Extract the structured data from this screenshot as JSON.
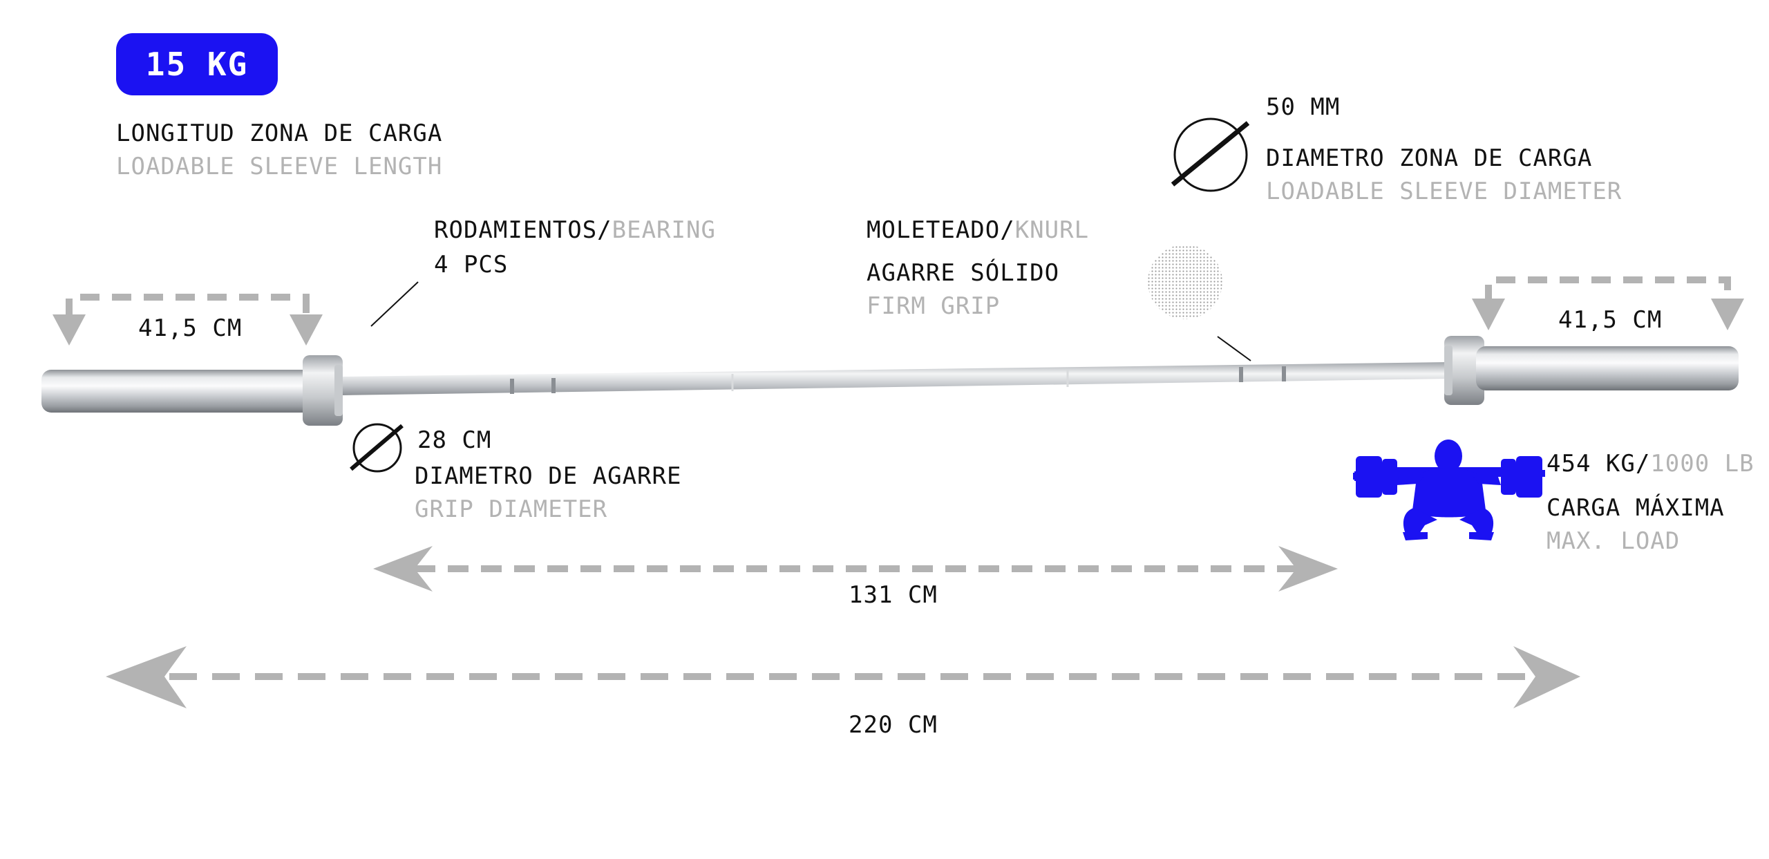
{
  "weight_badge": "15 KG",
  "sleeve_length": {
    "label_es": "LONGITUD ZONA DE CARGA",
    "label_en": "LOADABLE SLEEVE LENGTH",
    "left_value": "41,5 CM",
    "right_value": "41,5 CM"
  },
  "bearing": {
    "label_es": "RODAMIENTOS/",
    "label_en": "BEARING",
    "value": "4 PCS"
  },
  "knurl": {
    "label_es": "MOLETEADO/",
    "label_en": "KNURL",
    "desc_es": "AGARRE SÓLIDO",
    "desc_en": "FIRM GRIP"
  },
  "sleeve_diameter": {
    "value": "50 MM",
    "label_es": "DIAMETRO ZONA DE CARGA",
    "label_en": "LOADABLE SLEEVE DIAMETER",
    "icon": "diameter-icon"
  },
  "grip_diameter": {
    "value": "28 CM",
    "label_es": "DIAMETRO DE AGARRE",
    "label_en": "GRIP DIAMETER",
    "icon": "diameter-icon"
  },
  "max_load": {
    "value_kg": "454 KG/",
    "value_lb": "1000 LB",
    "label_es": "CARGA MÁXIMA",
    "label_en": "MAX. LOAD",
    "icon": "squat-lifter-icon"
  },
  "dimensions": {
    "inner_length": "131 CM",
    "total_length": "220 CM"
  },
  "colors": {
    "accent": "#1b12f2",
    "arrow_gray": "#b3b3b3",
    "secondary_text": "#b3b3b3"
  }
}
